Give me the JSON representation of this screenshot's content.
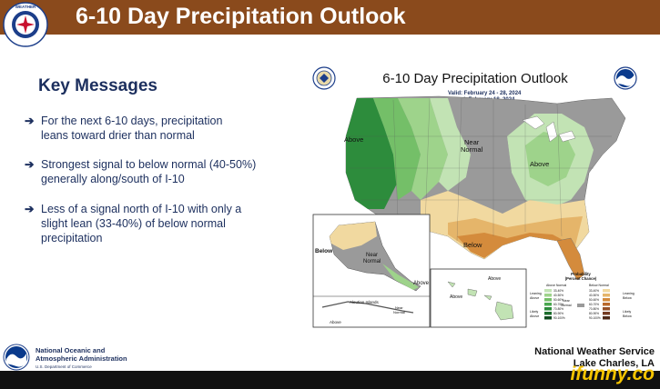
{
  "header": {
    "title": "6-10 Day Precipitation Outlook"
  },
  "key_messages": {
    "title": "Key Messages",
    "bullets": [
      "For the next 6-10 days, precipitation leans toward drier than normal",
      "Strongest signal to below normal (40-50%) generally along/south of I-10",
      "Less of a signal north of I-10 with only a slight lean (33-40%) of below normal precipitation"
    ],
    "arrow": "➔"
  },
  "map": {
    "title": "6-10 Day Precipitation Outlook",
    "valid": "Valid:  February 24 - 28, 2024",
    "issued": "Issued:  February 18, 2024",
    "labels": {
      "above_west": "Above",
      "near_normal": "Near\nNormal",
      "above_east": "Above",
      "below": "Below",
      "ak_below": "Below",
      "ak_near": "Near\nNormal",
      "ak_above": "Above",
      "hi_above": "Above",
      "aleutian": "Aleutian Islands",
      "aleutian_above": "Above",
      "aleutian_near": "Near\nNormal"
    },
    "legend": {
      "title": "Probability\n(Percent Chance)",
      "above_header": "Above Normal",
      "below_header": "Below Normal",
      "leaning_above": "Leaning\nAbove",
      "likely_above": "Likely\nAbove",
      "near_normal": "Near\nNormal",
      "leaning_below": "Leaning\nBelow",
      "likely_below": "Likely\nBelow",
      "ranges": [
        "33-40%",
        "40-50%",
        "50-60%",
        "60-70%",
        "70-80%",
        "80-90%",
        "90-100%"
      ],
      "above_colors": [
        "#c2e3b4",
        "#9ed38b",
        "#74bf68",
        "#4aa850",
        "#2d8c3c",
        "#1c6e2d",
        "#0e4a1d"
      ],
      "below_colors": [
        "#f1d9a0",
        "#e5b56a",
        "#d48b3c",
        "#b9682a",
        "#955028",
        "#743b22",
        "#4e2716"
      ]
    }
  },
  "footer": {
    "noaa_line1": "National Oceanic and",
    "noaa_line2": "Atmospheric Administration",
    "noaa_sub": "U.S. Department of Commerce",
    "office_line1": "National Weather Service",
    "office_line2": "Lake Charles, LA"
  },
  "watermark": "ifunny.co",
  "colors": {
    "header_bg": "#8a4a1c",
    "navy": "#1c2f5e",
    "near_gray": "#9a9a9a"
  }
}
